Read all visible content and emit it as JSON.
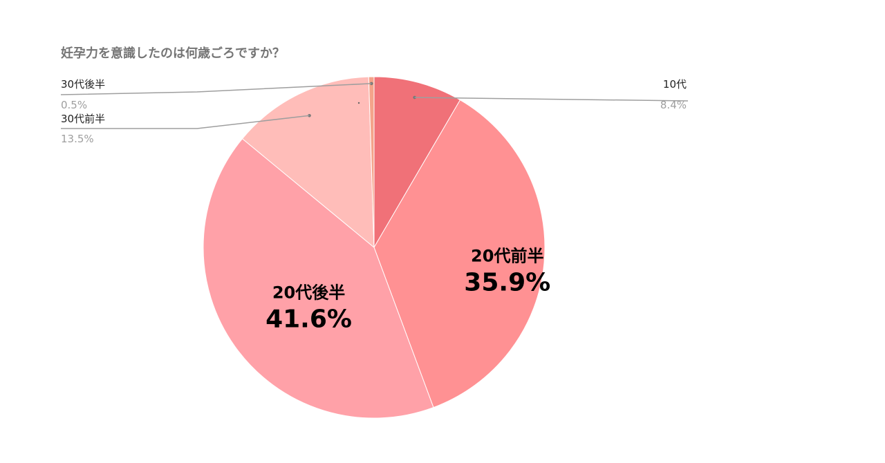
{
  "chart_data": {
    "type": "pie",
    "title": "妊孕力を意識したのは何歳ごろですか？",
    "slices": [
      {
        "label": "10代",
        "value": 8.4,
        "value_label": "8.4%",
        "color": "#f07178"
      },
      {
        "label": "20代前半",
        "value": 35.9,
        "value_label": "35.9%",
        "color": "#ff9193"
      },
      {
        "label": "20代後半",
        "value": 41.6,
        "value_label": "41.6%",
        "color": "#ffa1a8"
      },
      {
        "label": "30代前半",
        "value": 13.5,
        "value_label": "13.5%",
        "color": "#ffbdb9"
      },
      {
        "label": "30代後半",
        "value": 0.5,
        "value_label": "0.5%",
        "color": "#f4a38a"
      }
    ],
    "start_angle_deg": 0,
    "direction": "clockwise",
    "label_placement": {
      "10代": "callout-right",
      "20代前半": "inside",
      "20代後半": "inside",
      "30代前半": "callout-left",
      "30代後半": "callout-left"
    }
  }
}
